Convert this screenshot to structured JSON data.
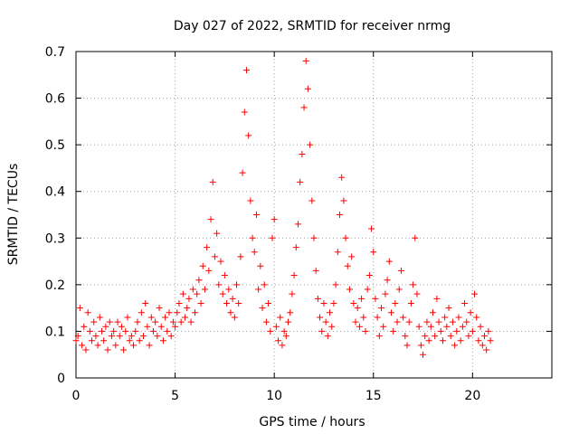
{
  "chart_data": {
    "type": "scatter",
    "title": "Day 027 of 2022, SRMTID for receiver nrmg",
    "xlabel": "GPS time / hours",
    "ylabel": "SRMTID / TECUs",
    "xlim": [
      0,
      24
    ],
    "ylim": [
      0,
      0.7
    ],
    "x_ticks": [
      0,
      5,
      10,
      15,
      20
    ],
    "y_ticks": [
      0,
      0.1,
      0.2,
      0.3,
      0.4,
      0.5,
      0.6,
      0.7
    ],
    "x_tick_labels": [
      "0",
      "5",
      "10",
      "15",
      "20"
    ],
    "y_tick_labels": [
      "0",
      "0.1",
      "0.2",
      "0.3",
      "0.4",
      "0.5",
      "0.6",
      "0.7"
    ],
    "grid": true,
    "marker": "+",
    "color": "#ff0000",
    "series": [
      {
        "name": "SRMTID",
        "points": [
          [
            0.0,
            0.08
          ],
          [
            0.1,
            0.09
          ],
          [
            0.2,
            0.15
          ],
          [
            0.3,
            0.07
          ],
          [
            0.4,
            0.11
          ],
          [
            0.5,
            0.06
          ],
          [
            0.6,
            0.14
          ],
          [
            0.7,
            0.1
          ],
          [
            0.8,
            0.08
          ],
          [
            0.9,
            0.12
          ],
          [
            1.0,
            0.09
          ],
          [
            1.1,
            0.07
          ],
          [
            1.2,
            0.13
          ],
          [
            1.3,
            0.1
          ],
          [
            1.4,
            0.08
          ],
          [
            1.5,
            0.11
          ],
          [
            1.6,
            0.06
          ],
          [
            1.7,
            0.12
          ],
          [
            1.8,
            0.09
          ],
          [
            1.9,
            0.1
          ],
          [
            2.0,
            0.07
          ],
          [
            2.1,
            0.12
          ],
          [
            2.2,
            0.09
          ],
          [
            2.3,
            0.11
          ],
          [
            2.4,
            0.06
          ],
          [
            2.5,
            0.1
          ],
          [
            2.6,
            0.13
          ],
          [
            2.7,
            0.08
          ],
          [
            2.8,
            0.09
          ],
          [
            2.9,
            0.07
          ],
          [
            3.0,
            0.1
          ],
          [
            3.1,
            0.12
          ],
          [
            3.2,
            0.08
          ],
          [
            3.3,
            0.14
          ],
          [
            3.4,
            0.09
          ],
          [
            3.5,
            0.16
          ],
          [
            3.6,
            0.11
          ],
          [
            3.7,
            0.07
          ],
          [
            3.8,
            0.13
          ],
          [
            3.9,
            0.1
          ],
          [
            4.0,
            0.12
          ],
          [
            4.1,
            0.09
          ],
          [
            4.2,
            0.15
          ],
          [
            4.3,
            0.11
          ],
          [
            4.4,
            0.08
          ],
          [
            4.5,
            0.13
          ],
          [
            4.6,
            0.1
          ],
          [
            4.7,
            0.14
          ],
          [
            4.8,
            0.09
          ],
          [
            4.9,
            0.12
          ],
          [
            5.0,
            0.11
          ],
          [
            5.1,
            0.14
          ],
          [
            5.2,
            0.16
          ],
          [
            5.3,
            0.12
          ],
          [
            5.4,
            0.18
          ],
          [
            5.5,
            0.13
          ],
          [
            5.6,
            0.15
          ],
          [
            5.7,
            0.17
          ],
          [
            5.8,
            0.12
          ],
          [
            5.9,
            0.19
          ],
          [
            6.0,
            0.14
          ],
          [
            6.1,
            0.18
          ],
          [
            6.2,
            0.21
          ],
          [
            6.3,
            0.16
          ],
          [
            6.4,
            0.24
          ],
          [
            6.5,
            0.19
          ],
          [
            6.6,
            0.28
          ],
          [
            6.7,
            0.23
          ],
          [
            6.8,
            0.34
          ],
          [
            6.9,
            0.42
          ],
          [
            7.0,
            0.26
          ],
          [
            7.1,
            0.31
          ],
          [
            7.2,
            0.2
          ],
          [
            7.3,
            0.25
          ],
          [
            7.4,
            0.18
          ],
          [
            7.5,
            0.22
          ],
          [
            7.6,
            0.16
          ],
          [
            7.7,
            0.19
          ],
          [
            7.8,
            0.14
          ],
          [
            7.9,
            0.17
          ],
          [
            8.0,
            0.13
          ],
          [
            8.1,
            0.2
          ],
          [
            8.2,
            0.16
          ],
          [
            8.3,
            0.26
          ],
          [
            8.4,
            0.44
          ],
          [
            8.5,
            0.57
          ],
          [
            8.6,
            0.66
          ],
          [
            8.7,
            0.52
          ],
          [
            8.8,
            0.38
          ],
          [
            8.9,
            0.3
          ],
          [
            9.0,
            0.27
          ],
          [
            9.1,
            0.35
          ],
          [
            9.2,
            0.19
          ],
          [
            9.3,
            0.24
          ],
          [
            9.4,
            0.15
          ],
          [
            9.5,
            0.2
          ],
          [
            9.6,
            0.12
          ],
          [
            9.7,
            0.16
          ],
          [
            9.8,
            0.1
          ],
          [
            9.9,
            0.3
          ],
          [
            10.0,
            0.34
          ],
          [
            10.1,
            0.11
          ],
          [
            10.2,
            0.08
          ],
          [
            10.3,
            0.13
          ],
          [
            10.4,
            0.07
          ],
          [
            10.5,
            0.1
          ],
          [
            10.6,
            0.09
          ],
          [
            10.7,
            0.12
          ],
          [
            10.8,
            0.14
          ],
          [
            10.9,
            0.18
          ],
          [
            11.0,
            0.22
          ],
          [
            11.1,
            0.28
          ],
          [
            11.2,
            0.33
          ],
          [
            11.3,
            0.42
          ],
          [
            11.4,
            0.48
          ],
          [
            11.5,
            0.58
          ],
          [
            11.6,
            0.68
          ],
          [
            11.7,
            0.62
          ],
          [
            11.8,
            0.5
          ],
          [
            11.9,
            0.38
          ],
          [
            12.0,
            0.3
          ],
          [
            12.1,
            0.23
          ],
          [
            12.2,
            0.17
          ],
          [
            12.3,
            0.13
          ],
          [
            12.4,
            0.1
          ],
          [
            12.5,
            0.16
          ],
          [
            12.6,
            0.12
          ],
          [
            12.7,
            0.09
          ],
          [
            12.8,
            0.14
          ],
          [
            12.9,
            0.11
          ],
          [
            13.0,
            0.16
          ],
          [
            13.1,
            0.2
          ],
          [
            13.2,
            0.27
          ],
          [
            13.3,
            0.35
          ],
          [
            13.4,
            0.43
          ],
          [
            13.5,
            0.38
          ],
          [
            13.6,
            0.3
          ],
          [
            13.7,
            0.24
          ],
          [
            13.8,
            0.19
          ],
          [
            13.9,
            0.26
          ],
          [
            14.0,
            0.16
          ],
          [
            14.1,
            0.12
          ],
          [
            14.2,
            0.15
          ],
          [
            14.3,
            0.11
          ],
          [
            14.4,
            0.17
          ],
          [
            14.5,
            0.13
          ],
          [
            14.6,
            0.1
          ],
          [
            14.7,
            0.19
          ],
          [
            14.8,
            0.22
          ],
          [
            14.9,
            0.32
          ],
          [
            15.0,
            0.27
          ],
          [
            15.1,
            0.17
          ],
          [
            15.2,
            0.13
          ],
          [
            15.3,
            0.09
          ],
          [
            15.4,
            0.15
          ],
          [
            15.5,
            0.11
          ],
          [
            15.6,
            0.18
          ],
          [
            15.7,
            0.21
          ],
          [
            15.8,
            0.25
          ],
          [
            15.9,
            0.14
          ],
          [
            16.0,
            0.1
          ],
          [
            16.1,
            0.16
          ],
          [
            16.2,
            0.12
          ],
          [
            16.3,
            0.19
          ],
          [
            16.4,
            0.23
          ],
          [
            16.5,
            0.13
          ],
          [
            16.6,
            0.09
          ],
          [
            16.7,
            0.07
          ],
          [
            16.8,
            0.12
          ],
          [
            16.9,
            0.16
          ],
          [
            17.0,
            0.2
          ],
          [
            17.1,
            0.3
          ],
          [
            17.2,
            0.18
          ],
          [
            17.3,
            0.11
          ],
          [
            17.4,
            0.07
          ],
          [
            17.5,
            0.05
          ],
          [
            17.6,
            0.09
          ],
          [
            17.7,
            0.12
          ],
          [
            17.8,
            0.08
          ],
          [
            17.9,
            0.11
          ],
          [
            18.0,
            0.14
          ],
          [
            18.1,
            0.09
          ],
          [
            18.2,
            0.17
          ],
          [
            18.3,
            0.12
          ],
          [
            18.4,
            0.1
          ],
          [
            18.5,
            0.08
          ],
          [
            18.6,
            0.13
          ],
          [
            18.7,
            0.11
          ],
          [
            18.8,
            0.15
          ],
          [
            18.9,
            0.09
          ],
          [
            19.0,
            0.12
          ],
          [
            19.1,
            0.07
          ],
          [
            19.2,
            0.1
          ],
          [
            19.3,
            0.13
          ],
          [
            19.4,
            0.08
          ],
          [
            19.5,
            0.11
          ],
          [
            19.6,
            0.16
          ],
          [
            19.7,
            0.12
          ],
          [
            19.8,
            0.09
          ],
          [
            19.9,
            0.14
          ],
          [
            20.0,
            0.1
          ],
          [
            20.1,
            0.18
          ],
          [
            20.2,
            0.13
          ],
          [
            20.3,
            0.08
          ],
          [
            20.4,
            0.11
          ],
          [
            20.5,
            0.07
          ],
          [
            20.6,
            0.09
          ],
          [
            20.7,
            0.06
          ],
          [
            20.8,
            0.1
          ],
          [
            20.9,
            0.08
          ]
        ]
      }
    ]
  }
}
